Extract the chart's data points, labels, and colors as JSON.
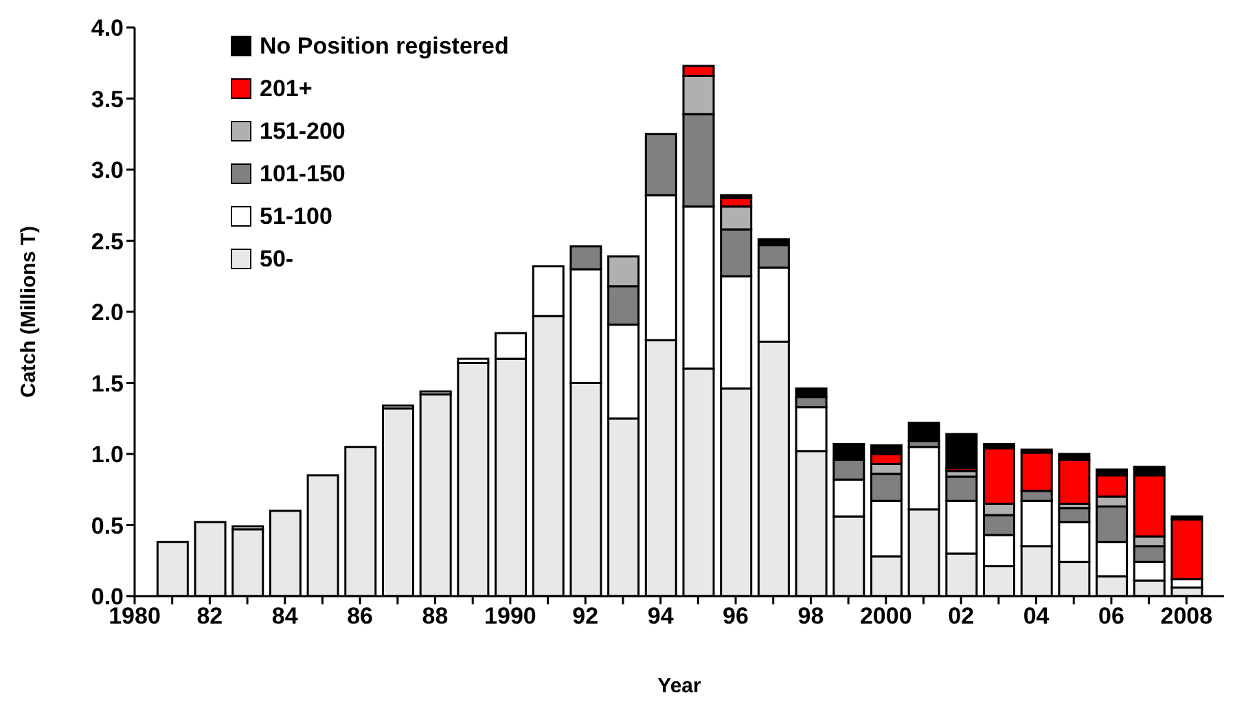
{
  "chart_data": {
    "type": "bar",
    "stacked": true,
    "xlabel": "Year",
    "ylabel": "Catch (Millions T)",
    "x": [
      1981,
      1982,
      1983,
      1984,
      1985,
      1986,
      1987,
      1988,
      1989,
      1990,
      1991,
      1992,
      1993,
      1994,
      1995,
      1996,
      1997,
      1998,
      1999,
      2000,
      2001,
      2002,
      2003,
      2004,
      2005,
      2006,
      2007,
      2008
    ],
    "series": [
      {
        "name": "50-",
        "color": "#e8e8e8",
        "values": [
          0.38,
          0.52,
          0.47,
          0.6,
          0.85,
          1.05,
          1.32,
          1.42,
          1.64,
          1.67,
          1.97,
          1.5,
          1.25,
          1.8,
          1.6,
          1.46,
          1.79,
          1.02,
          0.56,
          0.28,
          0.61,
          0.3,
          0.21,
          0.35,
          0.24,
          0.14,
          0.11,
          0.06
        ]
      },
      {
        "name": "51-100",
        "color": "#ffffff",
        "values": [
          0,
          0,
          0.02,
          0,
          0,
          0,
          0.02,
          0.02,
          0.03,
          0.18,
          0.35,
          0.8,
          0.66,
          1.02,
          1.14,
          0.79,
          0.52,
          0.31,
          0.26,
          0.39,
          0.44,
          0.37,
          0.22,
          0.32,
          0.28,
          0.24,
          0.13,
          0.06
        ]
      },
      {
        "name": "101-150",
        "color": "#808080",
        "values": [
          0,
          0,
          0,
          0,
          0,
          0,
          0,
          0,
          0,
          0,
          0,
          0.16,
          0.27,
          0.43,
          0.65,
          0.33,
          0.16,
          0.07,
          0.14,
          0.19,
          0.04,
          0.17,
          0.14,
          0.07,
          0.1,
          0.25,
          0.11,
          0
        ]
      },
      {
        "name": "151-200",
        "color": "#b0b0b0",
        "values": [
          0,
          0,
          0,
          0,
          0,
          0,
          0,
          0,
          0,
          0,
          0,
          0,
          0.21,
          0,
          0.27,
          0.16,
          0,
          0,
          0,
          0.07,
          0,
          0.04,
          0.08,
          0,
          0.03,
          0.07,
          0.07,
          0
        ]
      },
      {
        "name": "201+",
        "color": "#ff0000",
        "values": [
          0,
          0,
          0,
          0,
          0,
          0,
          0,
          0,
          0,
          0,
          0,
          0,
          0,
          0,
          0.07,
          0.06,
          0,
          0,
          0,
          0.07,
          0,
          0.02,
          0.39,
          0.27,
          0.31,
          0.15,
          0.43,
          0.42
        ]
      },
      {
        "name": "No Position registered",
        "color": "#000000",
        "values": [
          0,
          0,
          0,
          0,
          0,
          0,
          0,
          0,
          0,
          0,
          0,
          0,
          0,
          0,
          0,
          0.02,
          0.04,
          0.06,
          0.11,
          0.06,
          0.13,
          0.24,
          0.03,
          0.02,
          0.04,
          0.04,
          0.06,
          0.02
        ]
      }
    ],
    "xlim": [
      1980,
      2009
    ],
    "xticks": [
      {
        "value": 1980,
        "label": "1980"
      },
      {
        "value": 1981,
        "label": null
      },
      {
        "value": 1982,
        "label": "82"
      },
      {
        "value": 1983,
        "label": null
      },
      {
        "value": 1984,
        "label": "84"
      },
      {
        "value": 1985,
        "label": null
      },
      {
        "value": 1986,
        "label": "86"
      },
      {
        "value": 1987,
        "label": null
      },
      {
        "value": 1988,
        "label": "88"
      },
      {
        "value": 1989,
        "label": null
      },
      {
        "value": 1990,
        "label": "1990"
      },
      {
        "value": 1991,
        "label": null
      },
      {
        "value": 1992,
        "label": "92"
      },
      {
        "value": 1993,
        "label": null
      },
      {
        "value": 1994,
        "label": "94"
      },
      {
        "value": 1995,
        "label": null
      },
      {
        "value": 1996,
        "label": "96"
      },
      {
        "value": 1997,
        "label": null
      },
      {
        "value": 1998,
        "label": "98"
      },
      {
        "value": 1999,
        "label": null
      },
      {
        "value": 2000,
        "label": "2000"
      },
      {
        "value": 2001,
        "label": null
      },
      {
        "value": 2002,
        "label": "02"
      },
      {
        "value": 2003,
        "label": null
      },
      {
        "value": 2004,
        "label": "04"
      },
      {
        "value": 2005,
        "label": null
      },
      {
        "value": 2006,
        "label": "06"
      },
      {
        "value": 2007,
        "label": null
      },
      {
        "value": 2008,
        "label": "2008"
      }
    ],
    "ylim": [
      0,
      4
    ],
    "yticks": [
      {
        "value": 0,
        "label": "0.0"
      },
      {
        "value": 0.5,
        "label": "0.5"
      },
      {
        "value": 1,
        "label": "1.0"
      },
      {
        "value": 1.5,
        "label": "1.5"
      },
      {
        "value": 2,
        "label": "2.0"
      },
      {
        "value": 2.5,
        "label": "2.5"
      },
      {
        "value": 3,
        "label": "3.0"
      },
      {
        "value": 3.5,
        "label": "3.5"
      },
      {
        "value": 4,
        "label": "4.0"
      }
    ],
    "legend": "top left",
    "grid": false
  }
}
